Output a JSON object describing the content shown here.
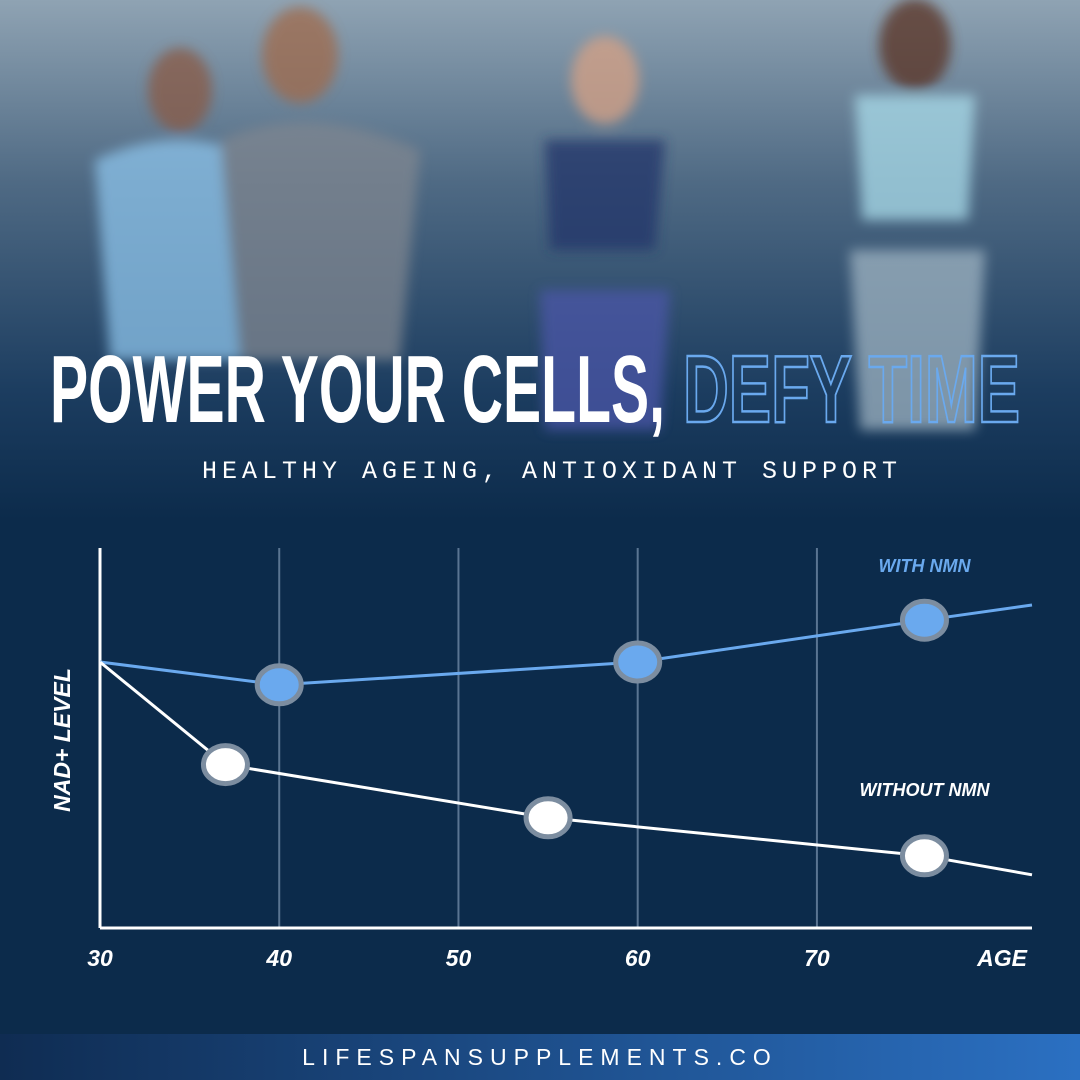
{
  "header": {
    "title": "POWER YOUR CELLS,",
    "title_highlight": "DEFY TIME",
    "subtitle": "HEALTHY AGEING, ANTIOXIDANT SUPPORT"
  },
  "chart_data": {
    "type": "line",
    "y_label": "NAD+ LEVEL",
    "x_label": "AGE",
    "xlim": [
      30,
      82
    ],
    "xticks": [
      30,
      40,
      50,
      60,
      70
    ],
    "ylim": [
      0,
      100
    ],
    "series": [
      {
        "name": "WITH NMN",
        "color": "#6aa9ee",
        "x": [
          30,
          40,
          60,
          76,
          82
        ],
        "values": [
          70,
          64,
          70,
          81,
          85
        ]
      },
      {
        "name": "WITHOUT NMN",
        "color": "#ffffff",
        "x": [
          30,
          37,
          55,
          76,
          82
        ],
        "values": [
          70,
          43,
          29,
          19,
          14
        ]
      }
    ]
  },
  "footer": {
    "url": "LIFESPANSUPPLEMENTS.CO"
  }
}
